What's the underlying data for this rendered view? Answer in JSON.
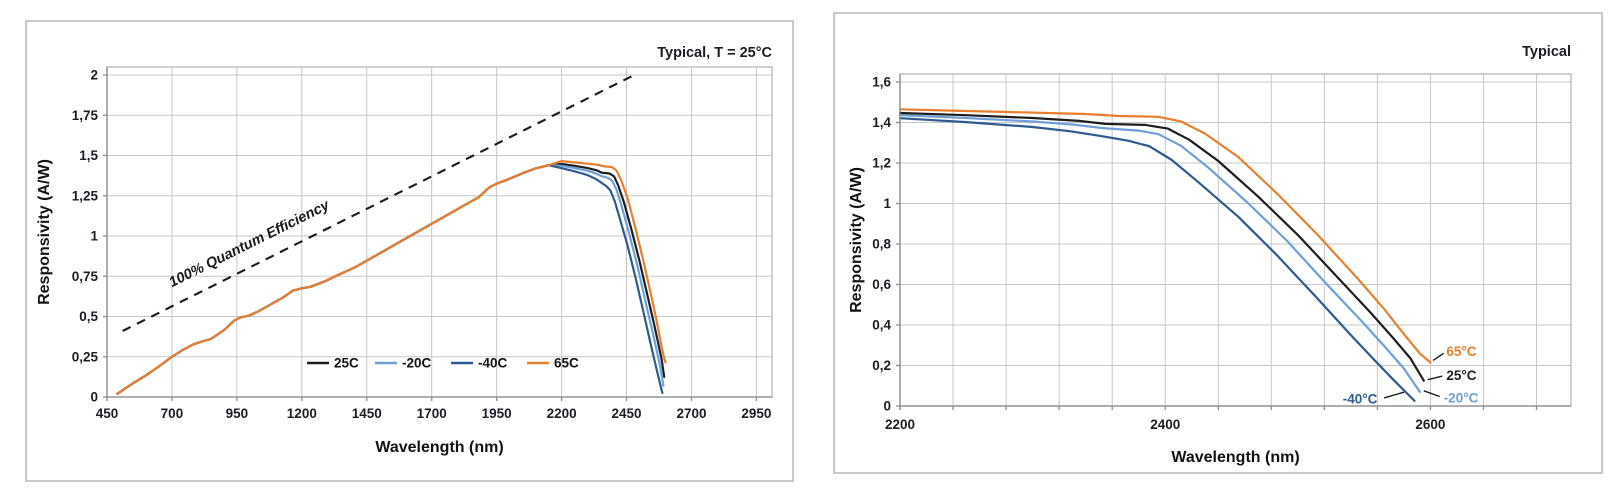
{
  "colors": {
    "t25": "#1d1d1d",
    "m20": "#6f9fd6",
    "m40": "#2e5a90",
    "t65": "#e87f2e",
    "grid": "#c7c7c7",
    "axis": "#8f8f8f",
    "border": "#bdbdbd",
    "text": "#1c1c26",
    "qe": "#1a1a1a"
  },
  "chart_data": [
    {
      "type": "line",
      "annotation": "Typical, T = 25°C",
      "xlabel": "Wavelength (nm)",
      "ylabel": "Responsivity (A/W)",
      "x_range": [
        450,
        3010
      ],
      "x_ticks": [
        450,
        700,
        950,
        1200,
        1450,
        1700,
        1950,
        2200,
        2450,
        2700,
        2950
      ],
      "x_tick_labels": [
        "450",
        "700",
        "950",
        "1200",
        "1450",
        "1700",
        "1950",
        "2200",
        "2450",
        "2700",
        "2950"
      ],
      "y_range": [
        0,
        2
      ],
      "y_ticks": [
        0,
        0.25,
        0.5,
        0.75,
        1,
        1.25,
        1.5,
        1.75,
        2
      ],
      "y_tick_labels": [
        "0",
        "0,25",
        "0,5",
        "0,75",
        "1",
        "1,25",
        "1,5",
        "1,75",
        "2"
      ],
      "qe_line": {
        "label": "100% Quantum Efficiency",
        "points": [
          [
            510,
            0.41
          ],
          [
            2480,
            2.0
          ]
        ],
        "label_at": [
          700,
          0.6
        ],
        "label_dy": -13
      },
      "legend": [
        {
          "label": "25C",
          "color_key": "t25"
        },
        {
          "label": "-20C",
          "color_key": "m20"
        },
        {
          "label": "-40C",
          "color_key": "m40"
        },
        {
          "label": "65C",
          "color_key": "t65"
        }
      ],
      "common_points": [
        [
          490,
          0.02
        ],
        [
          545,
          0.08
        ],
        [
          600,
          0.135
        ],
        [
          650,
          0.19
        ],
        [
          700,
          0.25
        ],
        [
          745,
          0.295
        ],
        [
          780,
          0.325
        ],
        [
          815,
          0.345
        ],
        [
          850,
          0.36
        ],
        [
          900,
          0.415
        ],
        [
          940,
          0.475
        ],
        [
          965,
          0.495
        ],
        [
          995,
          0.505
        ],
        [
          1030,
          0.53
        ],
        [
          1080,
          0.575
        ],
        [
          1130,
          0.62
        ],
        [
          1165,
          0.66
        ],
        [
          1200,
          0.675
        ],
        [
          1235,
          0.685
        ],
        [
          1290,
          0.72
        ],
        [
          1350,
          0.765
        ],
        [
          1410,
          0.81
        ],
        [
          1470,
          0.865
        ],
        [
          1530,
          0.92
        ],
        [
          1590,
          0.975
        ],
        [
          1650,
          1.03
        ],
        [
          1710,
          1.085
        ],
        [
          1770,
          1.14
        ],
        [
          1830,
          1.195
        ],
        [
          1880,
          1.24
        ],
        [
          1920,
          1.3
        ],
        [
          1950,
          1.325
        ],
        [
          2000,
          1.355
        ],
        [
          2050,
          1.39
        ],
        [
          2100,
          1.42
        ],
        [
          2150,
          1.44
        ]
      ],
      "series": [
        {
          "name": "25C",
          "color_key": "t25",
          "base": "common",
          "points": [
            [
              2200,
              1.447
            ],
            [
              2250,
              1.436
            ],
            [
              2300,
              1.422
            ],
            [
              2335,
              1.408
            ],
            [
              2355,
              1.393
            ],
            [
              2385,
              1.388
            ],
            [
              2402,
              1.37
            ],
            [
              2418,
              1.315
            ],
            [
              2440,
              1.21
            ],
            [
              2470,
              1.035
            ],
            [
              2500,
              0.845
            ],
            [
              2530,
              0.635
            ],
            [
              2555,
              0.46
            ],
            [
              2572,
              0.335
            ],
            [
              2585,
              0.235
            ],
            [
              2595,
              0.125
            ]
          ]
        },
        {
          "name": "-20C",
          "color_key": "m20",
          "base": "common",
          "points": [
            [
              2200,
              1.436
            ],
            [
              2250,
              1.422
            ],
            [
              2300,
              1.405
            ],
            [
              2330,
              1.39
            ],
            [
              2352,
              1.373
            ],
            [
              2380,
              1.36
            ],
            [
              2395,
              1.342
            ],
            [
              2412,
              1.285
            ],
            [
              2432,
              1.18
            ],
            [
              2462,
              1.005
            ],
            [
              2492,
              0.815
            ],
            [
              2522,
              0.6
            ],
            [
              2548,
              0.42
            ],
            [
              2566,
              0.29
            ],
            [
              2580,
              0.185
            ],
            [
              2592,
              0.07
            ]
          ]
        },
        {
          "name": "-40C",
          "color_key": "m40",
          "base": "common",
          "points": [
            [
              2200,
              1.421
            ],
            [
              2250,
              1.402
            ],
            [
              2300,
              1.378
            ],
            [
              2328,
              1.357
            ],
            [
              2350,
              1.335
            ],
            [
              2372,
              1.31
            ],
            [
              2388,
              1.283
            ],
            [
              2405,
              1.215
            ],
            [
              2425,
              1.105
            ],
            [
              2455,
              0.935
            ],
            [
              2485,
              0.74
            ],
            [
              2515,
              0.53
            ],
            [
              2540,
              0.35
            ],
            [
              2558,
              0.225
            ],
            [
              2572,
              0.13
            ],
            [
              2588,
              0.025
            ]
          ]
        },
        {
          "name": "65C",
          "color_key": "t65",
          "base": "common",
          "points": [
            [
              2200,
              1.465
            ],
            [
              2250,
              1.457
            ],
            [
              2300,
              1.449
            ],
            [
              2340,
              1.442
            ],
            [
              2365,
              1.432
            ],
            [
              2395,
              1.428
            ],
            [
              2412,
              1.405
            ],
            [
              2430,
              1.345
            ],
            [
              2455,
              1.23
            ],
            [
              2485,
              1.045
            ],
            [
              2515,
              0.845
            ],
            [
              2545,
              0.63
            ],
            [
              2565,
              0.48
            ],
            [
              2580,
              0.355
            ],
            [
              2592,
              0.26
            ],
            [
              2600,
              0.215
            ]
          ]
        }
      ]
    },
    {
      "type": "line",
      "annotation": "Typical",
      "xlabel": "Wavelength (nm)",
      "ylabel": "Responsivity (A/W)",
      "x_range": [
        2200,
        2706
      ],
      "x_grid_step": 40,
      "x_grid_end": 2680,
      "x_ticks": [
        2200,
        2400,
        2600
      ],
      "x_tick_labels": [
        "2200",
        "2400",
        "2600"
      ],
      "y_range": [
        0,
        1.6
      ],
      "y_ticks": [
        0,
        0.2,
        0.4,
        0.6,
        0.8,
        1,
        1.2,
        1.4,
        1.6
      ],
      "y_tick_labels": [
        "0",
        "0,2",
        "0,4",
        "0,6",
        "0,8",
        "1",
        "1,2",
        "1,4",
        "1,6"
      ],
      "series": [
        {
          "name": "-40°C",
          "color_key": "m40",
          "points": [
            [
              2200,
              1.421
            ],
            [
              2250,
              1.402
            ],
            [
              2300,
              1.378
            ],
            [
              2328,
              1.357
            ],
            [
              2350,
              1.335
            ],
            [
              2372,
              1.31
            ],
            [
              2388,
              1.283
            ],
            [
              2405,
              1.215
            ],
            [
              2425,
              1.105
            ],
            [
              2455,
              0.935
            ],
            [
              2485,
              0.74
            ],
            [
              2515,
              0.53
            ],
            [
              2540,
              0.35
            ],
            [
              2558,
              0.225
            ],
            [
              2572,
              0.13
            ],
            [
              2588,
              0.025
            ]
          ]
        },
        {
          "name": "-20°C",
          "color_key": "m20",
          "points": [
            [
              2200,
              1.436
            ],
            [
              2250,
              1.422
            ],
            [
              2300,
              1.405
            ],
            [
              2330,
              1.39
            ],
            [
              2352,
              1.373
            ],
            [
              2380,
              1.36
            ],
            [
              2395,
              1.342
            ],
            [
              2412,
              1.285
            ],
            [
              2432,
              1.18
            ],
            [
              2462,
              1.005
            ],
            [
              2492,
              0.815
            ],
            [
              2522,
              0.6
            ],
            [
              2548,
              0.42
            ],
            [
              2566,
              0.29
            ],
            [
              2580,
              0.185
            ],
            [
              2592,
              0.07
            ]
          ]
        },
        {
          "name": "25°C",
          "color_key": "t25",
          "points": [
            [
              2200,
              1.447
            ],
            [
              2250,
              1.436
            ],
            [
              2300,
              1.422
            ],
            [
              2335,
              1.408
            ],
            [
              2355,
              1.393
            ],
            [
              2385,
              1.388
            ],
            [
              2402,
              1.37
            ],
            [
              2418,
              1.315
            ],
            [
              2440,
              1.21
            ],
            [
              2470,
              1.035
            ],
            [
              2500,
              0.845
            ],
            [
              2530,
              0.635
            ],
            [
              2555,
              0.46
            ],
            [
              2572,
              0.335
            ],
            [
              2585,
              0.235
            ],
            [
              2595,
              0.125
            ]
          ]
        },
        {
          "name": "65°C",
          "color_key": "t65",
          "points": [
            [
              2200,
              1.465
            ],
            [
              2250,
              1.457
            ],
            [
              2300,
              1.449
            ],
            [
              2340,
              1.442
            ],
            [
              2365,
              1.432
            ],
            [
              2395,
              1.428
            ],
            [
              2412,
              1.405
            ],
            [
              2430,
              1.345
            ],
            [
              2455,
              1.23
            ],
            [
              2485,
              1.045
            ],
            [
              2515,
              0.845
            ],
            [
              2545,
              0.63
            ],
            [
              2565,
              0.48
            ],
            [
              2580,
              0.355
            ],
            [
              2592,
              0.26
            ],
            [
              2600,
              0.215
            ]
          ]
        }
      ],
      "curve_labels": [
        {
          "text": "65°C",
          "color_key": "t65",
          "at": [
            2612,
            0.27
          ],
          "anchor": "start",
          "leader": [
            [
              2602,
              0.225
            ],
            [
              2610,
              0.26
            ]
          ]
        },
        {
          "text": "25°C",
          "color_key": "t25",
          "at": [
            2612,
            0.15
          ],
          "anchor": "start",
          "leader": [
            [
              2598,
              0.13
            ],
            [
              2609,
              0.148
            ]
          ]
        },
        {
          "text": "-20°C",
          "color_key": "m20",
          "at": [
            2610,
            0.04
          ],
          "anchor": "start",
          "leader": [
            [
              2595,
              0.075
            ],
            [
              2607,
              0.047
            ]
          ]
        },
        {
          "text": "-40°C",
          "color_key": "m40",
          "at": [
            2560,
            0.035
          ],
          "anchor": "end",
          "leader": [
            [
              2565,
              0.04
            ],
            [
              2580,
              0.068
            ]
          ]
        }
      ]
    }
  ]
}
